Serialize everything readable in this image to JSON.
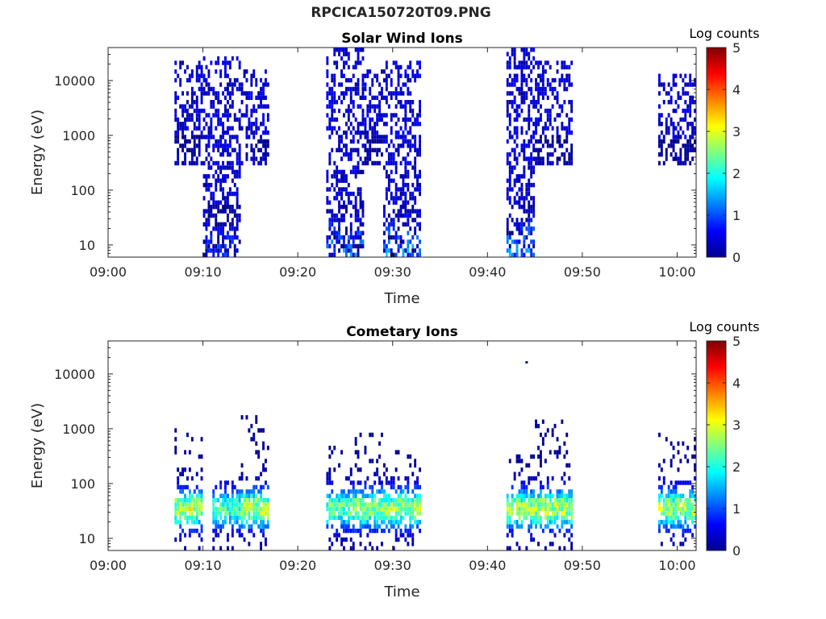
{
  "figure": {
    "title": "RPCICA150720T09.PNG"
  },
  "chart_data": [
    {
      "type": "heatmap",
      "title": "Solar Wind Ions",
      "xlabel": "Time",
      "ylabel": "Energy (eV)",
      "y_scale": "log",
      "ylim": [
        6,
        40000
      ],
      "xlim": [
        "09:00",
        "10:02"
      ],
      "x_ticks": [
        "09:00",
        "09:10",
        "09:20",
        "09:30",
        "09:40",
        "09:50",
        "10:00"
      ],
      "y_ticks": [
        "10",
        "100",
        "1000",
        "10000"
      ],
      "colorbar": {
        "label": "Log counts",
        "range": [
          0,
          5
        ],
        "ticks": [
          "0",
          "1",
          "2",
          "3",
          "4",
          "5"
        ],
        "colormap": "jet"
      },
      "grid": false,
      "bursts": [
        {
          "start": "09:07",
          "end": "09:10",
          "emin": 300,
          "emax": 20000,
          "peak_log_counts": 0.5
        },
        {
          "start": "09:10",
          "end": "09:14",
          "emin": 6,
          "emax": 25000,
          "peak_log_counts": 1.2
        },
        {
          "start": "09:14",
          "end": "09:17",
          "emin": 300,
          "emax": 15000,
          "peak_log_counts": 0.5
        },
        {
          "start": "09:23",
          "end": "09:27",
          "emin": 6,
          "emax": 35000,
          "peak_log_counts": 1.6
        },
        {
          "start": "09:27",
          "end": "09:29",
          "emin": 300,
          "emax": 15000,
          "peak_log_counts": 0.4
        },
        {
          "start": "09:29",
          "end": "09:33",
          "emin": 6,
          "emax": 20000,
          "peak_log_counts": 1.8
        },
        {
          "start": "09:42",
          "end": "09:45",
          "emin": 6,
          "emax": 35000,
          "peak_log_counts": 1.8
        },
        {
          "start": "09:45",
          "end": "09:49",
          "emin": 300,
          "emax": 20000,
          "peak_log_counts": 0.5
        },
        {
          "start": "09:58",
          "end": "10:02",
          "emin": 300,
          "emax": 12000,
          "peak_log_counts": 0.4
        }
      ]
    },
    {
      "type": "heatmap",
      "title": "Cometary Ions",
      "xlabel": "Time",
      "ylabel": "Energy (eV)",
      "y_scale": "log",
      "ylim": [
        6,
        40000
      ],
      "xlim": [
        "09:00",
        "10:02"
      ],
      "x_ticks": [
        "09:00",
        "09:10",
        "09:20",
        "09:30",
        "09:40",
        "09:50",
        "10:00"
      ],
      "y_ticks": [
        "10",
        "100",
        "1000",
        "10000"
      ],
      "colorbar": {
        "label": "Log counts",
        "range": [
          0,
          5
        ],
        "ticks": [
          "0",
          "1",
          "2",
          "3",
          "4",
          "5"
        ],
        "colormap": "jet"
      },
      "grid": false,
      "bursts": [
        {
          "start": "09:07",
          "end": "09:10",
          "emin": 6,
          "emax": 1000,
          "peak_log_counts": 3.3
        },
        {
          "start": "09:11",
          "end": "09:14",
          "emin": 6,
          "emax": 120,
          "peak_log_counts": 2.6
        },
        {
          "start": "09:14",
          "end": "09:17",
          "emin": 6,
          "emax": 1500,
          "peak_log_counts": 3.4
        },
        {
          "start": "09:23",
          "end": "09:26",
          "emin": 6,
          "emax": 500,
          "peak_log_counts": 2.8
        },
        {
          "start": "09:26",
          "end": "09:29",
          "emin": 6,
          "emax": 1200,
          "peak_log_counts": 3.2
        },
        {
          "start": "09:29",
          "end": "09:33",
          "emin": 6,
          "emax": 400,
          "peak_log_counts": 3.2
        },
        {
          "start": "09:42",
          "end": "09:45",
          "emin": 6,
          "emax": 300,
          "peak_log_counts": 3.2
        },
        {
          "start": "09:45",
          "end": "09:49",
          "emin": 6,
          "emax": 1400,
          "peak_log_counts": 3.3
        },
        {
          "start": "09:58",
          "end": "10:02",
          "emin": 8,
          "emax": 800,
          "peak_log_counts": 3.2
        }
      ],
      "outliers": [
        {
          "time": "09:44",
          "energy": 16000,
          "log_counts": 0.2
        }
      ]
    }
  ]
}
